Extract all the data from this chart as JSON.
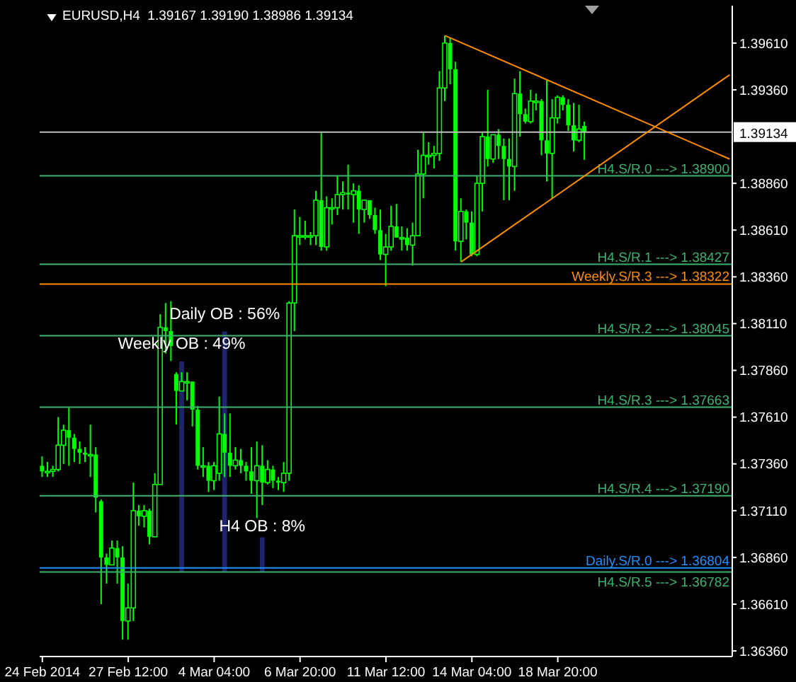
{
  "chart_data": {
    "type": "candlestick",
    "title": "EURUSD,H4  1.39167 1.39190 1.38986 1.39134",
    "color": "#00ff00",
    "categories": [
      "24 Feb 2014",
      null,
      null,
      null,
      null,
      null,
      null,
      null,
      null,
      null,
      null,
      null,
      null,
      null,
      null,
      null,
      "27 Feb 12:00",
      null,
      null,
      null,
      null,
      null,
      null,
      null,
      null,
      null,
      null,
      null,
      null,
      null,
      null,
      null,
      "4 Mar 04:00",
      null,
      null,
      null,
      null,
      null,
      null,
      null,
      null,
      null,
      null,
      null,
      null,
      null,
      null,
      null,
      "6 Mar 20:00",
      null,
      null,
      null,
      null,
      null,
      null,
      null,
      null,
      null,
      null,
      null,
      null,
      null,
      null,
      null,
      "11 Mar 12:00",
      null,
      null,
      null,
      null,
      null,
      null,
      null,
      null,
      null,
      null,
      null,
      null,
      null,
      null,
      null,
      "14 Mar 04:00",
      null,
      null,
      null,
      null,
      null,
      null,
      null,
      null,
      null,
      null,
      null,
      null,
      null,
      null,
      null,
      "18 Mar 20:00",
      null,
      null,
      null,
      null,
      null,
      null,
      null,
      null,
      null,
      null,
      null,
      null,
      null,
      null,
      null,
      null,
      null,
      null,
      null,
      null,
      null,
      null,
      null,
      null,
      null,
      null,
      null,
      null,
      null,
      null,
      null,
      null
    ],
    "ohlc": [
      [
        1.3735,
        1.374,
        1.3729,
        1.3732
      ],
      [
        1.3732,
        1.3737,
        1.3729,
        1.3732
      ],
      [
        1.3732,
        1.3735,
        1.3729,
        1.3733
      ],
      [
        1.3733,
        1.3761,
        1.3732,
        1.3746
      ],
      [
        1.3746,
        1.3757,
        1.3736,
        1.3754
      ],
      [
        1.3754,
        1.3766,
        1.3735,
        1.375
      ],
      [
        1.375,
        1.3752,
        1.3737,
        1.3744
      ],
      [
        1.3744,
        1.3748,
        1.3736,
        1.3742
      ],
      [
        1.3742,
        1.3745,
        1.3737,
        1.3741
      ],
      [
        1.3741,
        1.3757,
        1.3729,
        1.3741
      ],
      [
        1.3741,
        1.3745,
        1.371,
        1.3718
      ],
      [
        1.3716,
        1.3717,
        1.3661,
        1.3686
      ],
      [
        1.3686,
        1.3688,
        1.3672,
        1.3682
      ],
      [
        1.3682,
        1.3695,
        1.3682,
        1.3691
      ],
      [
        1.3691,
        1.3695,
        1.3672,
        1.3686
      ],
      [
        1.3686,
        1.3692,
        1.3642,
        1.3652
      ],
      [
        1.3652,
        1.3672,
        1.3642,
        1.3659
      ],
      [
        1.3659,
        1.3726,
        1.3652,
        1.3711
      ],
      [
        1.3711,
        1.3714,
        1.3703,
        1.3708
      ],
      [
        1.3708,
        1.3714,
        1.3702,
        1.3711
      ],
      [
        1.3711,
        1.3712,
        1.3693,
        1.3697
      ],
      [
        1.3697,
        1.3731,
        1.3697,
        1.3725
      ],
      [
        1.3725,
        1.3816,
        1.3725,
        1.3809
      ],
      [
        1.3809,
        1.3822,
        1.3795,
        1.3807
      ],
      [
        1.3807,
        1.3823,
        1.3791,
        1.3799
      ],
      [
        1.3784,
        1.3785,
        1.3757,
        1.3775
      ],
      [
        1.3775,
        1.3785,
        1.3775,
        1.378
      ],
      [
        1.378,
        1.3785,
        1.377,
        1.378
      ],
      [
        1.378,
        1.378,
        1.3756,
        1.3765
      ],
      [
        1.3765,
        1.3767,
        1.3733,
        1.3735
      ],
      [
        1.3735,
        1.3745,
        1.3729,
        1.3735
      ],
      [
        1.3735,
        1.3737,
        1.3721,
        1.3727
      ],
      [
        1.3727,
        1.3737,
        1.3722,
        1.3735
      ],
      [
        1.3731,
        1.3772,
        1.3727,
        1.3752
      ],
      [
        1.3752,
        1.3763,
        1.3729,
        1.3742
      ],
      [
        1.3742,
        1.3763,
        1.3729,
        1.3735
      ],
      [
        1.3735,
        1.3745,
        1.3733,
        1.3738
      ],
      [
        1.3738,
        1.3744,
        1.3731,
        1.3735
      ],
      [
        1.3735,
        1.3737,
        1.3727,
        1.3732
      ],
      [
        1.3732,
        1.3745,
        1.372,
        1.3727
      ],
      [
        1.3727,
        1.3748,
        1.3707,
        1.3735
      ],
      [
        1.3735,
        1.3746,
        1.3714,
        1.3726
      ],
      [
        1.3726,
        1.3738,
        1.3725,
        1.3733
      ],
      [
        1.3733,
        1.3735,
        1.3723,
        1.3727
      ],
      [
        1.3727,
        1.3729,
        1.3722,
        1.3726
      ],
      [
        1.3726,
        1.3737,
        1.3721,
        1.3731
      ],
      [
        1.3731,
        1.3823,
        1.3727,
        1.3822
      ],
      [
        1.3822,
        1.3872,
        1.3807,
        1.3858
      ],
      [
        1.3858,
        1.3868,
        1.3853,
        1.3858
      ],
      [
        1.3858,
        1.3866,
        1.3856,
        1.3858
      ],
      [
        1.3858,
        1.386,
        1.3853,
        1.3858
      ],
      [
        1.3858,
        1.3882,
        1.3853,
        1.3877
      ],
      [
        1.3877,
        1.3913,
        1.385,
        1.3852
      ],
      [
        1.3852,
        1.3879,
        1.385,
        1.3873
      ],
      [
        1.3873,
        1.3878,
        1.3864,
        1.3873
      ],
      [
        1.3873,
        1.389,
        1.3869,
        1.388
      ],
      [
        1.388,
        1.3887,
        1.3872,
        1.3881
      ],
      [
        1.3881,
        1.3896,
        1.3872,
        1.388
      ],
      [
        1.388,
        1.3886,
        1.3865,
        1.3882
      ],
      [
        1.3882,
        1.3885,
        1.3859,
        1.3872
      ],
      [
        1.3872,
        1.3877,
        1.3865,
        1.3877
      ],
      [
        1.3877,
        1.3877,
        1.3867,
        1.3869
      ],
      [
        1.3869,
        1.3873,
        1.3859,
        1.3861
      ],
      [
        1.3861,
        1.3872,
        1.3845,
        1.3848
      ],
      [
        1.3848,
        1.3859,
        1.3831,
        1.3852
      ],
      [
        1.3852,
        1.3874,
        1.385,
        1.3863
      ],
      [
        1.3863,
        1.3875,
        1.3857,
        1.3857
      ],
      [
        1.3857,
        1.3863,
        1.385,
        1.3857
      ],
      [
        1.3857,
        1.3862,
        1.385,
        1.3853
      ],
      [
        1.3853,
        1.3865,
        1.3842,
        1.3858
      ],
      [
        1.3858,
        1.3904,
        1.3858,
        1.3891
      ],
      [
        1.3891,
        1.3913,
        1.3878,
        1.3901
      ],
      [
        1.3901,
        1.3908,
        1.3896,
        1.3901
      ],
      [
        1.3901,
        1.3906,
        1.3894,
        1.3902
      ],
      [
        1.3902,
        1.3946,
        1.3898,
        1.3937
      ],
      [
        1.3937,
        1.3965,
        1.393,
        1.3961
      ],
      [
        1.3961,
        1.3964,
        1.3939,
        1.3947
      ],
      [
        1.3947,
        1.3951,
        1.385,
        1.3855
      ],
      [
        1.3855,
        1.3878,
        1.3844,
        1.3871
      ],
      [
        1.3871,
        1.3872,
        1.3856,
        1.3865
      ],
      [
        1.3865,
        1.3871,
        1.3847,
        1.3848
      ],
      [
        1.3848,
        1.389,
        1.3847,
        1.3886
      ],
      [
        1.3886,
        1.3913,
        1.3871,
        1.3911
      ],
      [
        1.3911,
        1.3936,
        1.3895,
        1.3899
      ],
      [
        1.3899,
        1.3912,
        1.3897,
        1.3912
      ],
      [
        1.3912,
        1.3915,
        1.3899,
        1.3906
      ],
      [
        1.3906,
        1.391,
        1.3877,
        1.3899
      ],
      [
        1.3899,
        1.391,
        1.3877,
        1.3895
      ],
      [
        1.3895,
        1.3942,
        1.3882,
        1.3934
      ],
      [
        1.3934,
        1.3946,
        1.3911,
        1.3923
      ],
      [
        1.3923,
        1.3926,
        1.3918,
        1.3919
      ],
      [
        1.3919,
        1.3936,
        1.3918,
        1.393
      ],
      [
        1.393,
        1.3934,
        1.3925,
        1.393
      ],
      [
        1.393,
        1.3931,
        1.3901,
        1.3909
      ],
      [
        1.3909,
        1.3941,
        1.3887,
        1.3902
      ],
      [
        1.3902,
        1.3931,
        1.3878,
        1.3921
      ],
      [
        1.3921,
        1.3933,
        1.3918,
        1.3932
      ],
      [
        1.3932,
        1.3933,
        1.3925,
        1.3928
      ],
      [
        1.3928,
        1.3931,
        1.3914,
        1.3917
      ],
      [
        1.3917,
        1.3929,
        1.3903,
        1.3909
      ],
      [
        1.3909,
        1.3928,
        1.3908,
        1.3915
      ],
      [
        1.39167,
        1.3919,
        1.38986,
        1.39134
      ],
      null,
      null,
      null,
      null,
      null,
      null,
      null,
      null,
      null,
      null,
      null,
      null,
      null,
      null,
      null,
      null,
      null,
      null,
      null,
      null,
      null,
      null,
      null,
      null,
      null,
      null,
      null
    ],
    "series": [
      {
        "type": "line",
        "color": "#ff8c00",
        "values": [
          null,
          null,
          null,
          null,
          null,
          null,
          null,
          null,
          null,
          null,
          null,
          null,
          null,
          null,
          null,
          null,
          null,
          null,
          null,
          null,
          null,
          null,
          null,
          null,
          null,
          null,
          null,
          null,
          null,
          null,
          null,
          null,
          null,
          null,
          null,
          null,
          null,
          null,
          null,
          null,
          null,
          null,
          null,
          null,
          null,
          null,
          null,
          null,
          null,
          null,
          null,
          null,
          null,
          null,
          null,
          null,
          null,
          null,
          null,
          null,
          null,
          null,
          null,
          null,
          null,
          null,
          null,
          null,
          null,
          null,
          null,
          null,
          null,
          null,
          null,
          1.3965,
          null,
          null,
          null,
          null,
          null,
          null,
          null,
          null,
          null,
          null,
          null,
          null,
          null,
          null,
          null,
          null,
          null,
          null,
          null,
          null,
          null,
          null,
          null,
          null,
          null,
          null,
          null,
          null,
          null,
          null,
          null,
          null,
          null,
          null,
          null,
          null,
          null,
          null,
          null,
          null,
          null,
          null,
          null,
          null,
          null,
          null,
          null,
          null,
          null,
          null,
          null,
          null,
          1.3899
        ]
      },
      {
        "type": "line",
        "color": "#ff8c00",
        "values": [
          null,
          null,
          null,
          null,
          null,
          null,
          null,
          null,
          null,
          null,
          null,
          null,
          null,
          null,
          null,
          null,
          null,
          null,
          null,
          null,
          null,
          null,
          null,
          null,
          null,
          null,
          null,
          null,
          null,
          null,
          null,
          null,
          null,
          null,
          null,
          null,
          null,
          null,
          null,
          null,
          null,
          null,
          null,
          null,
          null,
          null,
          null,
          null,
          null,
          null,
          null,
          null,
          null,
          null,
          null,
          null,
          null,
          null,
          null,
          null,
          null,
          null,
          null,
          null,
          null,
          null,
          null,
          null,
          null,
          null,
          null,
          null,
          null,
          null,
          null,
          null,
          null,
          null,
          1.3844,
          null,
          null,
          null,
          null,
          null,
          null,
          null,
          null,
          null,
          null,
          null,
          null,
          null,
          null,
          null,
          null,
          null,
          null,
          null,
          null,
          null,
          null,
          null,
          null,
          null,
          null,
          null,
          null,
          null,
          null,
          null,
          null,
          null,
          null,
          null,
          null,
          null,
          null,
          null,
          null,
          null,
          null,
          null,
          null,
          null,
          null,
          null,
          null,
          null,
          1.3944
        ]
      },
      {
        "type": "bar",
        "axis": "y2",
        "color": "#1e236e",
        "values": [
          null,
          null,
          null,
          null,
          null,
          null,
          null,
          null,
          null,
          null,
          null,
          null,
          null,
          null,
          null,
          null,
          null,
          null,
          null,
          null,
          null,
          null,
          null,
          null,
          null,
          null,
          49,
          null,
          null,
          null,
          null,
          null,
          null,
          null,
          56,
          null,
          null,
          null,
          null,
          null,
          null,
          8,
          null,
          null,
          null,
          null,
          null,
          null,
          null,
          null,
          null,
          null,
          null,
          null,
          null,
          null,
          null,
          null,
          null,
          null,
          null,
          null,
          null,
          null,
          null,
          null,
          null,
          null,
          null,
          null,
          null,
          null,
          null,
          null,
          null,
          null,
          null,
          null,
          null,
          null,
          null,
          null,
          null,
          null,
          null,
          null,
          null,
          null,
          null,
          null,
          null,
          null,
          null,
          null,
          null,
          null,
          null,
          null,
          null,
          null,
          null,
          null,
          null,
          null,
          null,
          null,
          null,
          null,
          null,
          null,
          null,
          null,
          null,
          null,
          null,
          null,
          null,
          null,
          null,
          null,
          null,
          null,
          null,
          null,
          null,
          null,
          null,
          null,
          null
        ],
        "value_labels": [
          null,
          null,
          null,
          null,
          null,
          null,
          null,
          null,
          null,
          null,
          null,
          null,
          null,
          null,
          null,
          null,
          null,
          null,
          null,
          null,
          null,
          null,
          null,
          null,
          null,
          null,
          "Weekly OB : 49%",
          null,
          null,
          null,
          null,
          null,
          null,
          null,
          "Daily OB : 56%",
          null,
          null,
          null,
          null,
          null,
          null,
          "H4 OB : 8%",
          null,
          null,
          null,
          null,
          null,
          null,
          null,
          null,
          null,
          null,
          null,
          null,
          null,
          null,
          null,
          null,
          null,
          null,
          null,
          null,
          null,
          null,
          null,
          null,
          null,
          null,
          null,
          null,
          null,
          null,
          null,
          null,
          null,
          null,
          null,
          null,
          null,
          null,
          null,
          null,
          null,
          null,
          null,
          null,
          null,
          null,
          null,
          null,
          null,
          null,
          null,
          null,
          null,
          null,
          null,
          null,
          null,
          null,
          null,
          null,
          null,
          null,
          null,
          null,
          null,
          null,
          null,
          null,
          null,
          null,
          null,
          null,
          null,
          null,
          null,
          null,
          null,
          null,
          null,
          null,
          null,
          null,
          null,
          null,
          null,
          null,
          null
        ]
      }
    ],
    "ylim": [
      1.3633,
      1.3981
    ],
    "yticks": [
      {
        "value": 1.3961,
        "label": "1.39610"
      },
      {
        "value": 1.3936,
        "label": "1.39360"
      },
      {
        "value": 1.3886,
        "label": "1.38860"
      },
      {
        "value": 1.3861,
        "label": "1.38610"
      },
      {
        "value": 1.3836,
        "label": "1.38360"
      },
      {
        "value": 1.3811,
        "label": "1.38110"
      },
      {
        "value": 1.3786,
        "label": "1.37860"
      },
      {
        "value": 1.3761,
        "label": "1.37610"
      },
      {
        "value": 1.3736,
        "label": "1.37360"
      },
      {
        "value": 1.3711,
        "label": "1.37110"
      },
      {
        "value": 1.3686,
        "label": "1.36860"
      },
      {
        "value": 1.3661,
        "label": "1.36610"
      },
      {
        "value": 1.3636,
        "label": "1.36360"
      }
    ],
    "tick_labels": "xy",
    "ref_lines": [
      {
        "axis": "y",
        "value": 1.39134,
        "label": "1.39134",
        "color": "#c0c0c0"
      },
      {
        "axis": "y",
        "value": 1.389,
        "label": "H4.S/R.0 ---> 1.38900",
        "color": "#3cb371"
      },
      {
        "axis": "y",
        "value": 1.38427,
        "label": "H4.S/R.1 ---> 1.38427",
        "color": "#3cb371"
      },
      {
        "axis": "y",
        "value": 1.38322,
        "label": "Weekly.S/R.3 ---> 1.38322",
        "color": "#ff8c00"
      },
      {
        "axis": "y",
        "value": 1.38045,
        "label": "H4.S/R.2 ---> 1.38045",
        "color": "#3cb371"
      },
      {
        "axis": "y",
        "value": 1.37663,
        "label": "H4.S/R.3 ---> 1.37663",
        "color": "#3cb371"
      },
      {
        "axis": "y",
        "value": 1.3719,
        "label": "H4.S/R.4 ---> 1.37190",
        "color": "#3cb371"
      },
      {
        "axis": "y",
        "value": 1.36804,
        "label": "Daily.S/R.0 ---> 1.36804",
        "color": "#1e90ff"
      },
      {
        "axis": "y",
        "value": 1.36782,
        "label": "H4.S/R.5 ---> 1.36782",
        "color": "#3cb371"
      }
    ]
  }
}
